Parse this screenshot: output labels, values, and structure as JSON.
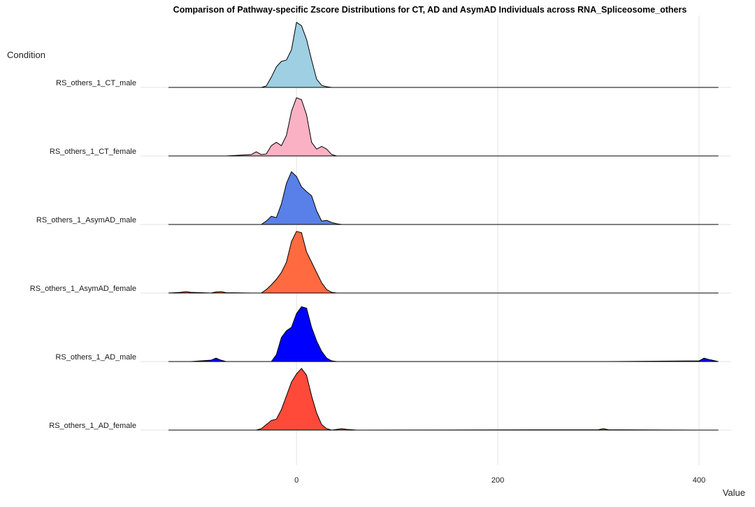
{
  "chart_data": {
    "type": "ridgeline",
    "title": "Comparison of Pathway-specific Zscore Distributions for CT, AD and AsymAD Individuals across RNA_Spliceosome_others",
    "x_label": "Value",
    "y_label": "Condition",
    "xlim": [
      -155,
      432
    ],
    "xticks": [
      0,
      200,
      400
    ],
    "grid": true,
    "x": [
      -127,
      -115,
      -110,
      -105,
      -85,
      -80,
      -75,
      -70,
      -45,
      -40,
      -35,
      -30,
      -25,
      -20,
      -15,
      -10,
      -5,
      0,
      5,
      10,
      15,
      20,
      25,
      30,
      35,
      40,
      45,
      50,
      60,
      300,
      305,
      310,
      400,
      405,
      410,
      419
    ],
    "series": [
      {
        "name": "RS_others_1_CT_male",
        "color": "#9ecfe2",
        "values": [
          0,
          0,
          0,
          0,
          0,
          0,
          0,
          0,
          0,
          0,
          0,
          0.02,
          0.15,
          0.3,
          0.38,
          0.4,
          0.55,
          0.95,
          0.9,
          0.7,
          0.4,
          0.12,
          0.03,
          0.01,
          0,
          0,
          0,
          0,
          0,
          0,
          0,
          0,
          0,
          0,
          0,
          0
        ]
      },
      {
        "name": "RS_others_1_CT_female",
        "color": "#fbb1c4",
        "values": [
          0,
          0,
          0,
          0,
          0,
          0,
          0,
          0,
          0.02,
          0.06,
          0.02,
          0.03,
          0.15,
          0.2,
          0.15,
          0.3,
          0.65,
          0.85,
          0.82,
          0.6,
          0.2,
          0.1,
          0.14,
          0.1,
          0.02,
          0,
          0,
          0,
          0,
          0,
          0,
          0,
          0,
          0,
          0,
          0
        ]
      },
      {
        "name": "RS_others_1_AsymAD_male",
        "color": "#5880e8",
        "values": [
          0,
          0,
          0,
          0,
          0,
          0,
          0,
          0,
          0,
          0,
          0,
          0.05,
          0.12,
          0.1,
          0.3,
          0.6,
          0.77,
          0.7,
          0.55,
          0.48,
          0.42,
          0.2,
          0.05,
          0.06,
          0.03,
          0.01,
          0,
          0,
          0,
          0,
          0,
          0,
          0,
          0,
          0,
          0
        ]
      },
      {
        "name": "RS_others_1_AsymAD_female",
        "color": "#ff6a40",
        "values": [
          0,
          0.01,
          0.02,
          0.01,
          0,
          0.015,
          0.02,
          0.005,
          0,
          0,
          0,
          0.05,
          0.12,
          0.2,
          0.3,
          0.45,
          0.75,
          0.9,
          0.88,
          0.6,
          0.45,
          0.3,
          0.15,
          0.05,
          0.01,
          0,
          0,
          0,
          0,
          0,
          0,
          0,
          0,
          0,
          0,
          0
        ]
      },
      {
        "name": "RS_others_1_AD_male",
        "color": "#0000ff",
        "values": [
          0,
          0,
          0,
          0,
          0.02,
          0.05,
          0.02,
          0,
          0,
          0,
          0,
          0,
          0,
          0.1,
          0.35,
          0.45,
          0.5,
          0.7,
          0.8,
          0.78,
          0.5,
          0.3,
          0.15,
          0.05,
          0.01,
          0,
          0,
          0,
          0,
          0,
          0,
          0,
          0.01,
          0.05,
          0.03,
          0
        ]
      },
      {
        "name": "RS_others_1_AD_female",
        "color": "#ff4a3a",
        "values": [
          0,
          0,
          0,
          0,
          0,
          0,
          0,
          0,
          0,
          0,
          0.02,
          0.08,
          0.14,
          0.16,
          0.3,
          0.5,
          0.7,
          0.82,
          0.9,
          0.8,
          0.5,
          0.25,
          0.08,
          0.02,
          0,
          0.01,
          0.02,
          0.01,
          0,
          0.005,
          0.02,
          0.005,
          0,
          0,
          0,
          0
        ]
      }
    ]
  }
}
